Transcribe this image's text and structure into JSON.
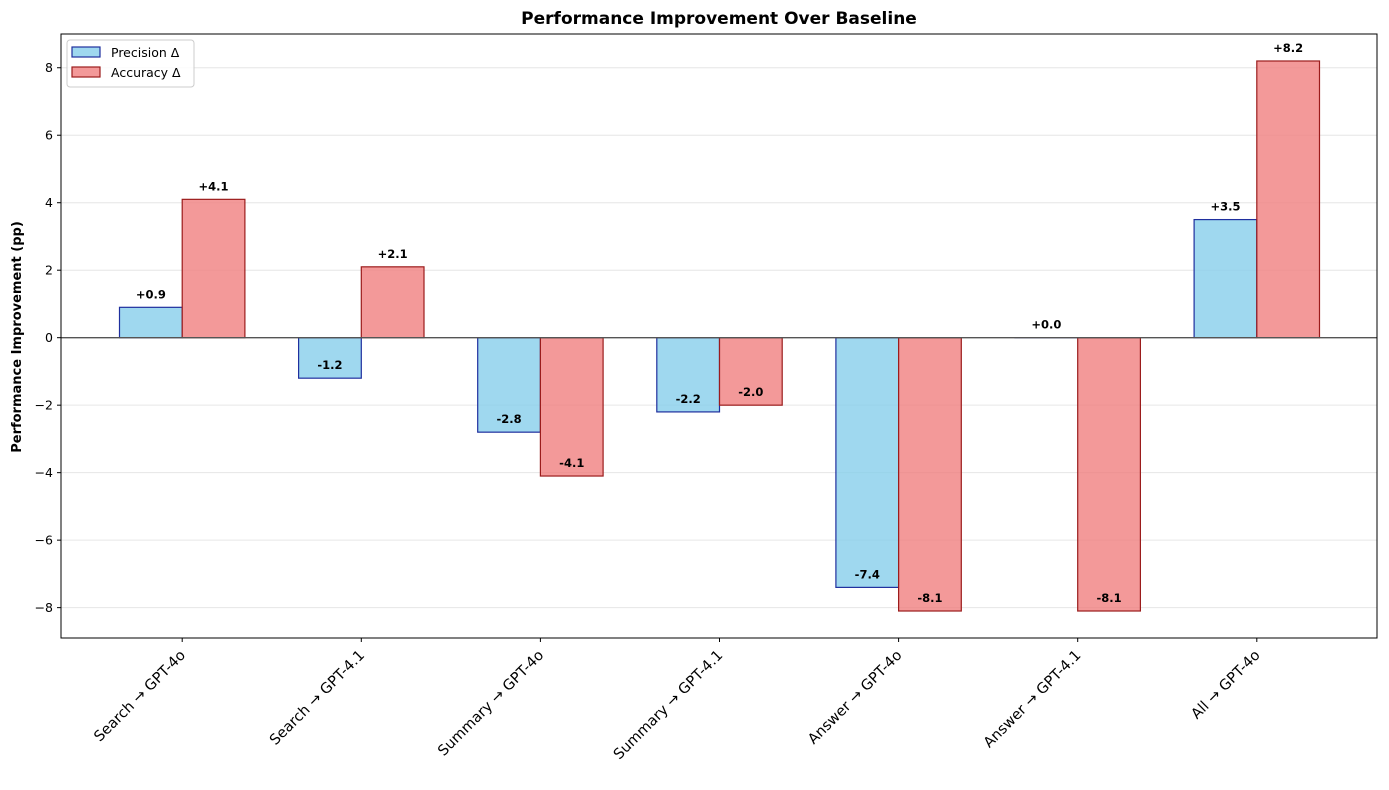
{
  "chart_data": {
    "type": "bar",
    "title": "Performance Improvement Over Baseline",
    "xlabel": "",
    "ylabel": "Performance Improvement (pp)",
    "ylim": [
      -8.9,
      9.0
    ],
    "yticks": [
      -8,
      -6,
      -4,
      -2,
      0,
      2,
      4,
      6,
      8
    ],
    "ytick_labels": [
      "−8",
      "−6",
      "−4",
      "−2",
      "0",
      "2",
      "4",
      "6",
      "8"
    ],
    "grid": "horizontal",
    "legend_position": "top-left",
    "categories": [
      "Search → GPT-4o",
      "Search → GPT-4.1",
      "Summary → GPT-4o",
      "Summary → GPT-4.1",
      "Answer → GPT-4o",
      "Answer → GPT-4.1",
      "All → GPT-4o"
    ],
    "series": [
      {
        "name": "Precision Δ",
        "values": [
          0.9,
          -1.2,
          -2.8,
          -2.2,
          -7.4,
          0.0,
          3.5
        ],
        "labels": [
          "+0.9",
          "-1.2",
          "-2.8",
          "-2.2",
          "-7.4",
          "+0.0",
          "+3.5"
        ],
        "fill": "#87ceeb",
        "edge": "#1f2f9e"
      },
      {
        "name": "Accuracy Δ",
        "values": [
          4.1,
          2.1,
          -4.1,
          -2.0,
          -8.1,
          -8.1,
          8.2
        ],
        "labels": [
          "+4.1",
          "+2.1",
          "-4.1",
          "-2.0",
          "-8.1",
          "-8.1",
          "+8.2"
        ],
        "fill": "#f08080",
        "edge": "#9b1c1c"
      }
    ]
  }
}
